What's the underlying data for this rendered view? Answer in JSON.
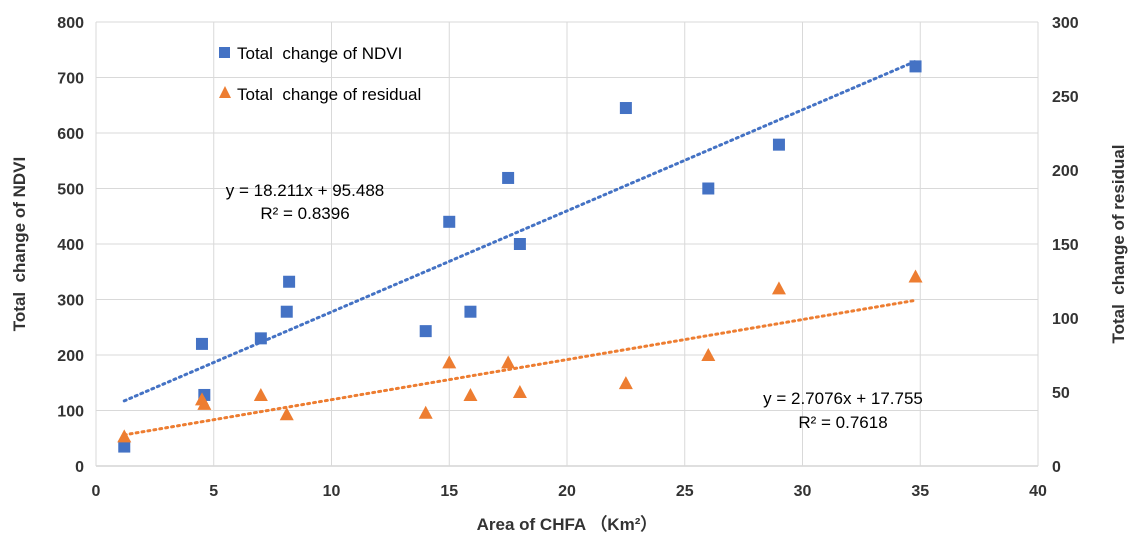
{
  "chart_data": {
    "type": "scatter",
    "xlabel": "Area of CHFA （Km²）",
    "ylabel_left": "Total  change of NDVI",
    "ylabel_right": "Total  change of residual",
    "xlim": [
      0,
      40
    ],
    "ylim_left": [
      0,
      800
    ],
    "ylim_right": [
      0,
      300
    ],
    "x_ticks": [
      0,
      5,
      10,
      15,
      20,
      25,
      30,
      35,
      40
    ],
    "y_ticks_left": [
      0,
      100,
      200,
      300,
      400,
      500,
      600,
      700,
      800
    ],
    "y_ticks_right": [
      0,
      50,
      100,
      150,
      200,
      250,
      300
    ],
    "grid": true,
    "legend": "top-left",
    "series": [
      {
        "name": "Total  change of NDVI",
        "axis": "left",
        "marker": "square",
        "color": "#4472C4",
        "x": [
          1.2,
          4.5,
          4.6,
          7.0,
          8.1,
          8.2,
          14.0,
          15.0,
          15.9,
          17.5,
          18.0,
          22.5,
          26.0,
          29.0,
          34.8
        ],
        "y": [
          35,
          220,
          128,
          230,
          278,
          332,
          243,
          440,
          278,
          519,
          400,
          645,
          500,
          579,
          720
        ],
        "trendline": {
          "slope": 18.211,
          "intercept": 95.488,
          "x_range": [
            1.2,
            34.8
          ]
        },
        "equation": "y = 18.211x + 95.488",
        "r2": "R² = 0.8396"
      },
      {
        "name": "Total  change of residual",
        "axis": "right",
        "marker": "triangle",
        "color": "#ED7D31",
        "x": [
          1.2,
          4.5,
          4.6,
          7.0,
          8.1,
          14.0,
          15.0,
          15.9,
          17.5,
          18.0,
          22.5,
          26.0,
          29.0,
          34.8
        ],
        "y": [
          20,
          45,
          42,
          48,
          35,
          36,
          70,
          48,
          70,
          50,
          56,
          75,
          120,
          128
        ],
        "trendline": {
          "slope": 2.7076,
          "intercept": 17.755,
          "x_range": [
            1.2,
            34.8
          ]
        },
        "equation": "y = 2.7076x + 17.755",
        "r2": "R² = 0.7618"
      }
    ]
  }
}
